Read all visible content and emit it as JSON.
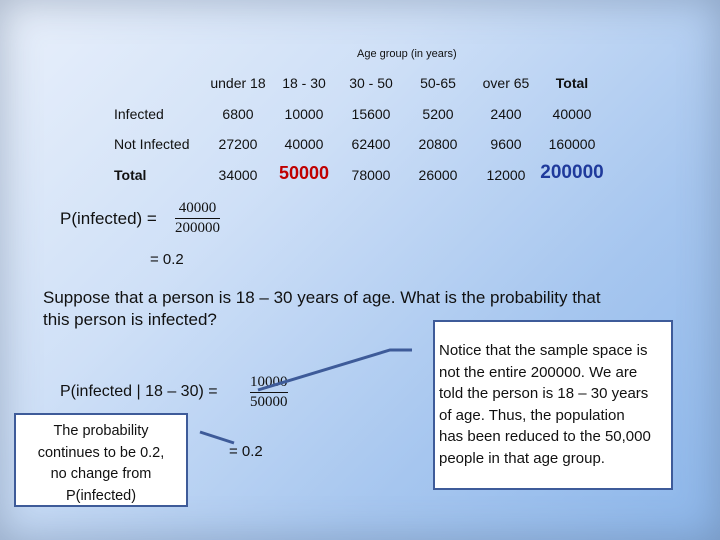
{
  "table": {
    "caption": "Age group (in years)",
    "headers": [
      "under 18",
      "18 - 30",
      "30 - 50",
      "50-65",
      "over 65",
      "Total"
    ],
    "rows": [
      {
        "label": "Infected",
        "values": [
          "6800",
          "10000",
          "15600",
          "5200",
          "2400",
          "40000"
        ]
      },
      {
        "label": "Not Infected",
        "values": [
          "27200",
          "40000",
          "62400",
          "20800",
          "9600",
          "160000"
        ]
      },
      {
        "label": "Total",
        "values": [
          "34000",
          "50000",
          "78000",
          "26000",
          "12000",
          "200000"
        ]
      }
    ]
  },
  "p_infected": {
    "label": "P(infected) =",
    "numerator": "40000",
    "denominator": "200000",
    "result": "= 0.2"
  },
  "question": {
    "line1": "Suppose that a person is 18 – 30 years of age.  What is the probability that",
    "line2": "this person is infected?"
  },
  "conditional": {
    "label": "P(infected | 18 – 30) =",
    "numerator": "10000",
    "denominator": "50000",
    "result": "= 0.2"
  },
  "callout": {
    "lines": [
      "The probability",
      "continues to be 0.2,",
      "no change from",
      "P(infected)"
    ]
  },
  "note": {
    "lines": [
      "Notice that the sample space is",
      "not the entire 200000.  We are",
      "told the person is 18 – 30 years",
      "of age.  Thus, the population",
      "has been reduced to the 50,000",
      "people in that age group."
    ]
  },
  "colors": {
    "highlight_red": "#c00000",
    "highlight_blue": "#1f3a9c",
    "box_border": "#3e5b99"
  }
}
